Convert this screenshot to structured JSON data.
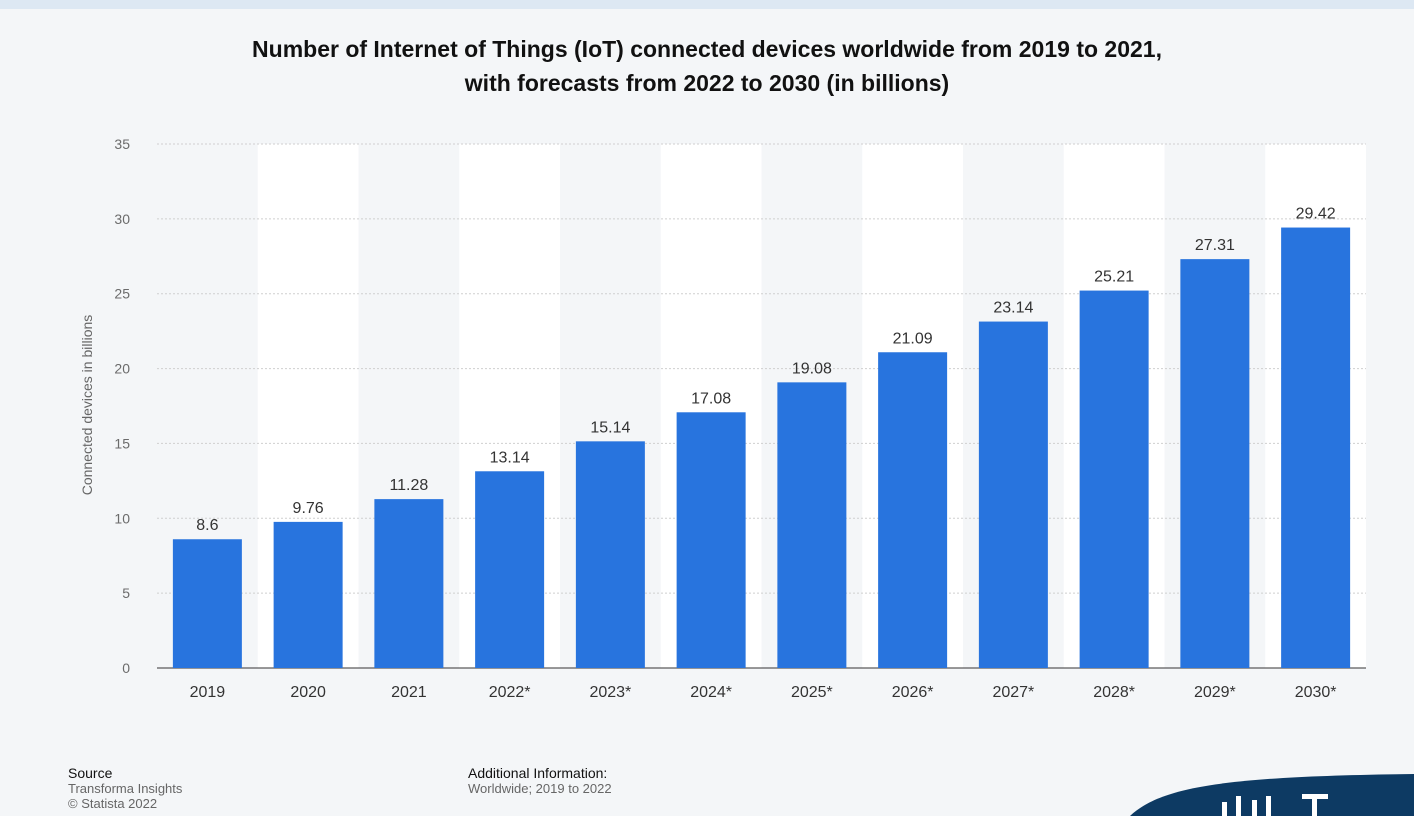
{
  "colors": {
    "bar": "#2874de",
    "grid": "#cfcfcf",
    "band": "#ffffff",
    "background": "#f4f6f8",
    "logo": "#0d3a63"
  },
  "chart_data": {
    "type": "bar",
    "title": "Number of Internet of Things (IoT) connected devices worldwide from 2019 to 2021, with forecasts from 2022 to 2030 (in billions)",
    "title_lines": [
      "Number of Internet of Things (IoT) connected devices worldwide from 2019 to 2021,",
      "with forecasts from 2022 to 2030 (in billions)"
    ],
    "categories": [
      "2019",
      "2020",
      "2021",
      "2022*",
      "2023*",
      "2024*",
      "2025*",
      "2026*",
      "2027*",
      "2028*",
      "2029*",
      "2030*"
    ],
    "values": [
      8.6,
      9.76,
      11.28,
      13.14,
      15.14,
      17.08,
      19.08,
      21.09,
      23.14,
      25.21,
      27.31,
      29.42
    ],
    "data_labels": [
      "8.6",
      "9.76",
      "11.28",
      "13.14",
      "15.14",
      "17.08",
      "19.08",
      "21.09",
      "23.14",
      "25.21",
      "27.31",
      "29.42"
    ],
    "xlabel": "",
    "ylabel": "Connected devices in billions",
    "ylim": [
      0,
      35
    ],
    "yticks": [
      0,
      5,
      10,
      15,
      20,
      25,
      30,
      35
    ],
    "grid": true,
    "legend": "none"
  },
  "footer": {
    "source_heading": "Source",
    "source_name": "Transforma Insights",
    "copyright": "© Statista 2022",
    "additional_heading": "Additional Information:",
    "additional_text": "Worldwide; 2019 to 2022"
  }
}
